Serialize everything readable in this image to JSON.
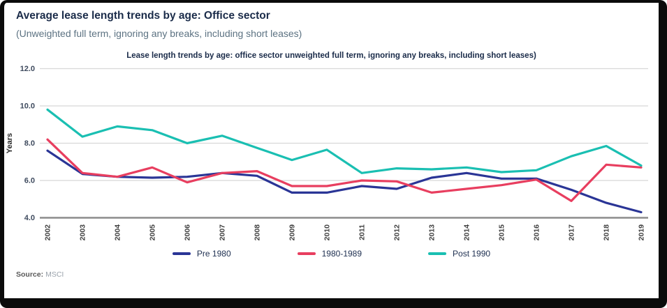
{
  "page": {
    "title": "Average lease length trends by age: Office sector",
    "subtitle": "(Unweighted full term, ignoring any breaks, including short leases)",
    "source_label": "Source:",
    "source_value": "MSCI"
  },
  "theme": {
    "title_color": "#1a2b49",
    "subtitle_color": "#5c7282",
    "grid_color": "#d8d8d8",
    "axis_color": "#8c8c8c",
    "frame_color": "#0b0b0b"
  },
  "chart_data": {
    "type": "line",
    "title": "Lease length trends by age: office sector unweighted full term, ignoring any breaks, including short leases)",
    "xlabel": "",
    "ylabel": "Years",
    "ylim": [
      4.0,
      12.0
    ],
    "yticks": [
      12.0,
      10.0,
      8.0,
      6.0,
      4.0
    ],
    "grid": true,
    "legend_position": "bottom",
    "categories": [
      2002,
      2003,
      2004,
      2005,
      2006,
      2007,
      2008,
      2009,
      2010,
      2011,
      2012,
      2013,
      2014,
      2015,
      2016,
      2017,
      2018,
      2019
    ],
    "series": [
      {
        "name": "Pre 1980",
        "color": "#2a3596",
        "values": [
          7.6,
          6.35,
          6.2,
          6.15,
          6.2,
          6.4,
          6.25,
          5.35,
          5.35,
          5.7,
          5.55,
          6.15,
          6.4,
          6.1,
          6.1,
          5.5,
          4.8,
          4.3
        ]
      },
      {
        "name": "1980-1989",
        "color": "#e83e5f",
        "values": [
          8.2,
          6.4,
          6.2,
          6.7,
          5.9,
          6.4,
          6.5,
          5.7,
          5.7,
          6.0,
          5.95,
          5.35,
          5.55,
          5.75,
          6.05,
          4.9,
          6.85,
          6.7
        ]
      },
      {
        "name": "Post 1990",
        "color": "#1abfb2",
        "values": [
          9.8,
          8.35,
          8.9,
          8.7,
          8.0,
          8.4,
          7.75,
          7.1,
          7.65,
          6.4,
          6.65,
          6.6,
          6.7,
          6.45,
          6.55,
          7.3,
          7.85,
          6.8
        ]
      }
    ]
  }
}
